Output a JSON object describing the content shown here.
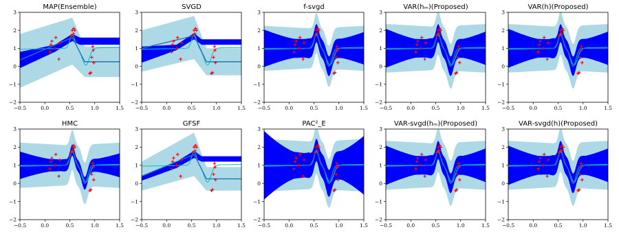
{
  "figure": {
    "colors": {
      "outer_band": "#add8e6",
      "inner_band": "#0000ff",
      "mean_line": "#1f77b4",
      "true_function": "#17becf",
      "observations": "#ff0000"
    }
  },
  "chart_data": [
    {
      "type": "line",
      "title": "MAP(Ensemble)",
      "method": "map",
      "xlim": [
        -0.5,
        1.5
      ],
      "ylim": [
        -2,
        3
      ],
      "xticks": [
        "−0.5",
        "0.0",
        "0.5",
        "1.0",
        "1.5"
      ],
      "yticks": [
        "−2",
        "−1",
        "0",
        "1",
        "2",
        "3"
      ]
    },
    {
      "type": "line",
      "title": "SVGD",
      "method": "svgd",
      "xlim": [
        -0.5,
        1.5
      ],
      "ylim": [
        -2,
        3
      ],
      "xticks": [
        "−0.5",
        "0.0",
        "0.5",
        "1.0",
        "1.5"
      ],
      "yticks": [
        "−2",
        "−1",
        "0",
        "1",
        "2",
        "3"
      ]
    },
    {
      "type": "line",
      "title": "f-svgd",
      "method": "fsvgd",
      "xlim": [
        -0.5,
        1.5
      ],
      "ylim": [
        -2,
        3
      ],
      "xticks": [
        "−0.5",
        "0.0",
        "0.5",
        "1.0",
        "1.5"
      ],
      "yticks": [
        "−2",
        "−1",
        "0",
        "1",
        "2",
        "3"
      ]
    },
    {
      "type": "line",
      "title": "VAR(hₘ)(Proposed)",
      "method": "var",
      "xlim": [
        -0.5,
        1.5
      ],
      "ylim": [
        -2,
        3
      ],
      "xticks": [
        "−0.5",
        "0.0",
        "0.5",
        "1.0",
        "1.5"
      ],
      "yticks": [
        "−2",
        "−1",
        "0",
        "1",
        "2",
        "3"
      ]
    },
    {
      "type": "line",
      "title": "VAR(h)(Proposed)",
      "method": "var",
      "xlim": [
        -0.5,
        1.5
      ],
      "ylim": [
        -2,
        3
      ],
      "xticks": [
        "−0.5",
        "0.0",
        "0.5",
        "1.0",
        "1.5"
      ],
      "yticks": [
        "−2",
        "−1",
        "0",
        "1",
        "2",
        "3"
      ]
    },
    {
      "type": "line",
      "title": "HMC",
      "method": "hmc",
      "xlim": [
        -0.5,
        1.5
      ],
      "ylim": [
        -2,
        3
      ],
      "xticks": [
        "−0.5",
        "0.0",
        "0.5",
        "1.0",
        "1.5"
      ],
      "yticks": [
        "−2",
        "−1",
        "0",
        "1",
        "2",
        "3"
      ]
    },
    {
      "type": "line",
      "title": "GFSF",
      "method": "gfsf",
      "xlim": [
        -0.5,
        1.5
      ],
      "ylim": [
        -2,
        3
      ],
      "xticks": [
        "−0.5",
        "0.0",
        "0.5",
        "1.0",
        "1.5"
      ],
      "yticks": [
        "−2",
        "−1",
        "0",
        "1",
        "2",
        "3"
      ]
    },
    {
      "type": "line",
      "title": "PAC²_E",
      "method": "pac",
      "xlim": [
        -0.5,
        1.5
      ],
      "ylim": [
        -2,
        3
      ],
      "xticks": [
        "−0.5",
        "0.0",
        "0.5",
        "1.0",
        "1.5"
      ],
      "yticks": [
        "−2",
        "−1",
        "0",
        "1",
        "2",
        "3"
      ]
    },
    {
      "type": "line",
      "title": "VAR-svgd(hₘ)(Proposed)",
      "method": "var",
      "xlim": [
        -0.5,
        1.5
      ],
      "ylim": [
        -2,
        3
      ],
      "xticks": [
        "−0.5",
        "0.0",
        "0.5",
        "1.0",
        "1.5"
      ],
      "yticks": [
        "−2",
        "−1",
        "0",
        "1",
        "2",
        "3"
      ]
    },
    {
      "type": "line",
      "title": "VAR-svgd(h)(Proposed)",
      "method": "var",
      "xlim": [
        -0.5,
        1.5
      ],
      "ylim": [
        -2,
        3
      ],
      "xticks": [
        "−0.5",
        "0.0",
        "0.5",
        "1.0",
        "1.5"
      ],
      "yticks": [
        "−2",
        "−1",
        "0",
        "1",
        "2",
        "3"
      ]
    }
  ],
  "observations": {
    "x": [
      0.1,
      0.12,
      0.14,
      0.2,
      0.22,
      0.28,
      0.3,
      0.52,
      0.55,
      0.57,
      0.58,
      0.6,
      0.9,
      0.92,
      0.94,
      0.96,
      0.97,
      0.98
    ],
    "y": [
      0.8,
      1.2,
      1.4,
      1.0,
      1.6,
      0.4,
      1.3,
      1.7,
      2.0,
      1.8,
      2.1,
      2.0,
      -0.4,
      -0.35,
      0.5,
      1.1,
      0.9,
      0.2
    ]
  },
  "methods": {
    "map": {
      "mean_x": [
        -0.5,
        0.55,
        0.8,
        1.5
      ],
      "mean_y": [
        0.35,
        1.6,
        0.25,
        0.25
      ],
      "inner_x": [
        -0.5,
        0.2,
        0.55,
        0.7
      ],
      "inner_upper": [
        0.8,
        1.2,
        1.8,
        1.6
      ],
      "inner_lower": [
        -0.1,
        0.8,
        1.4,
        1.2
      ],
      "outer_x": [
        -0.5,
        0.55,
        0.8,
        1.5
      ],
      "outer_upper": [
        1.8,
        2.7,
        1.1,
        1.1
      ],
      "outer_lower": [
        -1.2,
        0.1,
        -0.6,
        -0.6
      ]
    },
    "svgd": {
      "mean_x": [
        -0.5,
        0.55,
        0.8,
        1.5
      ],
      "mean_y": [
        1.0,
        1.7,
        0.25,
        0.25
      ],
      "inner_x": [
        -0.5,
        0.2,
        0.55,
        0.7
      ],
      "inner_upper": [
        1.1,
        1.2,
        1.85,
        1.5
      ],
      "inner_lower": [
        0.2,
        0.9,
        1.5,
        1.2
      ],
      "outer_x": [
        -0.5,
        0.55,
        0.8,
        1.5
      ],
      "outer_upper": [
        2.0,
        2.8,
        1.0,
        1.0
      ],
      "outer_lower": [
        -0.3,
        0.4,
        -0.5,
        -0.5
      ]
    },
    "fsvgd": {
      "band_out": 1.1,
      "band_in": 0.5,
      "spread": 0.5,
      "tail": 0.15
    },
    "var": {
      "band_out": 1.2,
      "band_in": 0.5,
      "spread": 0.6,
      "tail": 0.1
    },
    "hmc": {
      "band_out": 1.1,
      "band_in": 0.3,
      "spread": 0.5,
      "tail": 0.4
    },
    "gfsf": {
      "mean_x": [
        -0.5,
        0.55,
        0.8,
        1.5
      ],
      "mean_y": [
        0.4,
        1.6,
        0.25,
        0.25
      ],
      "inner_x": [
        -0.5,
        0.2,
        0.55,
        0.7
      ],
      "inner_upper": [
        0.4,
        1.2,
        1.8,
        1.5
      ],
      "inner_lower": [
        0.15,
        0.85,
        1.4,
        1.2
      ],
      "outer_x": [
        -0.5,
        0.55,
        0.8,
        1.5
      ],
      "outer_upper": [
        1.2,
        2.8,
        0.9,
        0.9
      ],
      "outer_lower": [
        -0.4,
        0.4,
        -0.4,
        -0.4
      ]
    },
    "pac": {
      "band_out": 1.3,
      "band_in": 0.6,
      "spread": 0.6,
      "tail": 0.6
    }
  }
}
